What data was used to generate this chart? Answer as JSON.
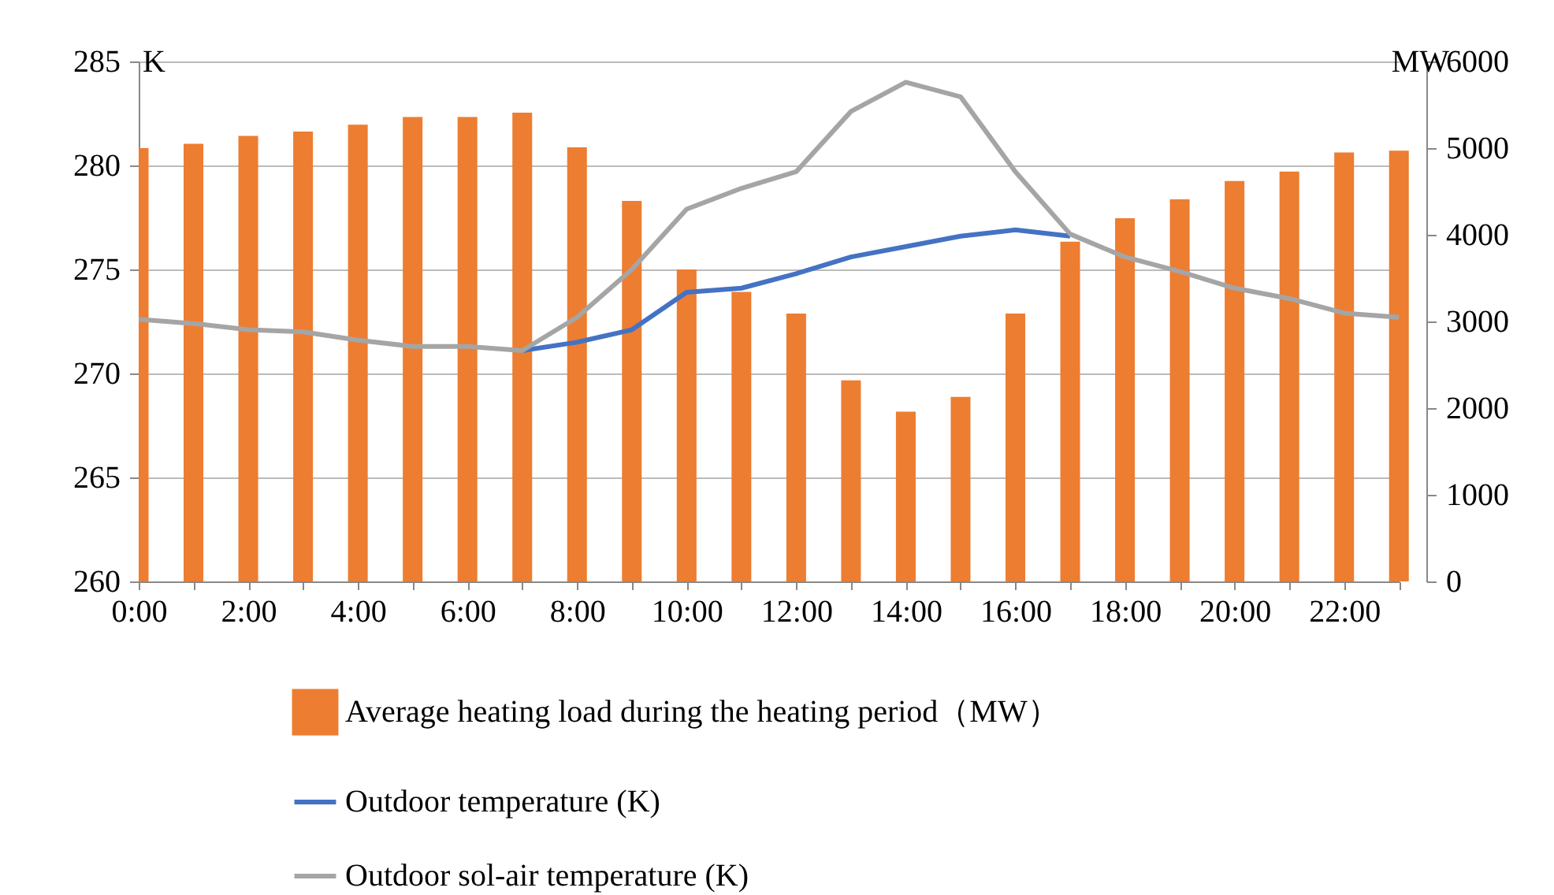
{
  "chart_data": {
    "type": "bar",
    "categories": [
      "0:00",
      null,
      "2:00",
      null,
      "4:00",
      null,
      "6:00",
      null,
      "8:00",
      null,
      "10:00",
      null,
      "12:00",
      null,
      "14:00",
      null,
      "16:00",
      null,
      "18:00",
      null,
      "20:00",
      null,
      "22:00",
      null
    ],
    "ylabel": "K",
    "y2label": "MW",
    "ylim": [
      260,
      285
    ],
    "yticks": [
      260,
      265,
      270,
      275,
      280,
      285
    ],
    "y2lim": [
      0,
      6000
    ],
    "y2ticks": [
      0,
      1000,
      2000,
      3000,
      4000,
      5000,
      6000
    ],
    "grid": "y",
    "legend": "bottom",
    "series": [
      {
        "name": "Average heating load during the heating period（MW）",
        "axis": "y2",
        "color": "#ed7d31",
        "values": [
          5000,
          5050,
          5140,
          5190,
          5270,
          5360,
          5360,
          5410,
          5010,
          4390,
          3600,
          3340,
          3090,
          2320,
          1960,
          2130,
          3090,
          3920,
          4190,
          4410,
          4620,
          4730,
          4950,
          4970
        ]
      },
      {
        "name": "Outdoor temperature (K)",
        "type": "line",
        "color": "#4472c4",
        "values": [
          null,
          null,
          null,
          null,
          null,
          null,
          null,
          271.1,
          271.5,
          272.1,
          273.9,
          274.1,
          274.8,
          275.6,
          276.1,
          276.6,
          276.9,
          276.6,
          null,
          null,
          null,
          null,
          null,
          null
        ]
      },
      {
        "name": "Outdoor sol-air temperature (K)",
        "type": "line",
        "color": "#a5a5a5",
        "values": [
          272.6,
          272.4,
          272.1,
          272.0,
          271.6,
          271.3,
          271.3,
          271.1,
          272.7,
          275.0,
          277.9,
          278.9,
          279.7,
          282.6,
          284.0,
          283.3,
          279.7,
          276.7,
          275.6,
          274.9,
          274.1,
          273.6,
          272.9,
          272.7
        ]
      }
    ]
  }
}
